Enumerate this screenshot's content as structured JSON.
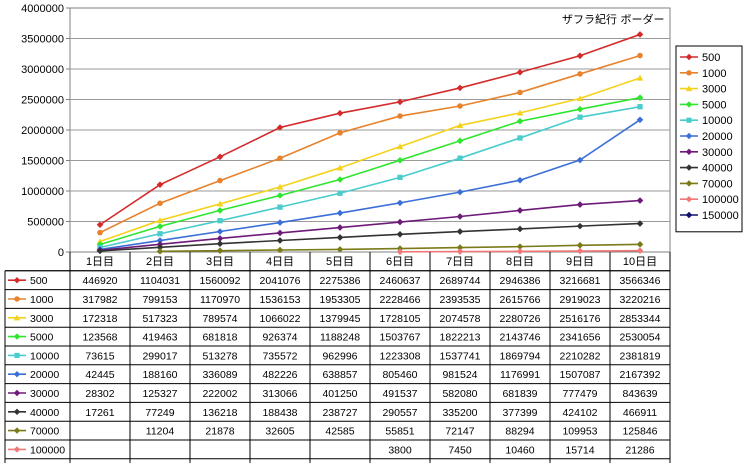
{
  "chart_data": {
    "type": "line",
    "title": "ザフラ紀行 ボーダー",
    "categories": [
      "1日目",
      "2日目",
      "3日目",
      "4日目",
      "5日目",
      "6日目",
      "7日目",
      "8日目",
      "9日目",
      "10日目"
    ],
    "ylim": [
      0,
      4000000
    ],
    "yticks": [
      "0",
      "500000",
      "1000000",
      "1500000",
      "2000000",
      "2500000",
      "3000000",
      "3500000",
      "4000000"
    ],
    "grid": true,
    "legend_position": "right",
    "series": [
      {
        "name": "500",
        "color": "#d42a2a",
        "marker": "diamond",
        "values": [
          446920,
          1104031,
          1560092,
          2041076,
          2275386,
          2460637,
          2689744,
          2946386,
          3216681,
          3566346
        ],
        "cells": [
          "446920",
          "1104031",
          "1560092",
          "2041076",
          "2275386",
          "2460637",
          "2689744",
          "2946386",
          "3216681",
          "3566346"
        ]
      },
      {
        "name": "1000",
        "color": "#e8822c",
        "marker": "circle",
        "values": [
          317982,
          799153,
          1170970,
          1536153,
          1953305,
          2228466,
          2393535,
          2615766,
          2919023,
          3220216
        ],
        "cells": [
          "317982",
          "799153",
          "1170970",
          "1536153",
          "1953305",
          "2228466",
          "2393535",
          "2615766",
          "2919023",
          "3220216"
        ]
      },
      {
        "name": "3000",
        "color": "#f5d21a",
        "marker": "triangle",
        "values": [
          172318,
          517323,
          789574,
          1066022,
          1379945,
          1728105,
          2074578,
          2280726,
          2516176,
          2853344
        ],
        "cells": [
          "172318",
          "517323",
          "789574",
          "1066022",
          "1379945",
          "1728105",
          "2074578",
          "2280726",
          "2516176",
          "2853344"
        ]
      },
      {
        "name": "5000",
        "color": "#2ee62e",
        "marker": "diamond",
        "values": [
          123568,
          419463,
          681818,
          926374,
          1188248,
          1503767,
          1822213,
          2143746,
          2341656,
          2530054
        ],
        "cells": [
          "123568",
          "419463",
          "681818",
          "926374",
          "1188248",
          "1503767",
          "1822213",
          "2143746",
          "2341656",
          "2530054"
        ]
      },
      {
        "name": "10000",
        "color": "#48cccc",
        "marker": "square",
        "values": [
          73615,
          299017,
          513278,
          735572,
          962996,
          1223308,
          1537741,
          1869794,
          2210282,
          2381819
        ],
        "cells": [
          "73615",
          "299017",
          "513278",
          "735572",
          "962996",
          "1223308",
          "1537741",
          "1869794",
          "2210282",
          "2381819"
        ]
      },
      {
        "name": "20000",
        "color": "#3a6fd8",
        "marker": "diamond",
        "values": [
          42445,
          188160,
          336089,
          482226,
          638857,
          805460,
          981524,
          1176991,
          1507087,
          2167392
        ],
        "cells": [
          "42445",
          "188160",
          "336089",
          "482226",
          "638857",
          "805460",
          "981524",
          "1176991",
          "1507087",
          "2167392"
        ]
      },
      {
        "name": "30000",
        "color": "#6e1a78",
        "marker": "diamond",
        "values": [
          28302,
          125327,
          222002,
          313066,
          401250,
          491537,
          582080,
          681839,
          777479,
          843639
        ],
        "cells": [
          "28302",
          "125327",
          "222002",
          "313066",
          "401250",
          "491537",
          "582080",
          "681839",
          "777479",
          "843639"
        ]
      },
      {
        "name": "40000",
        "color": "#333333",
        "marker": "diamond",
        "values": [
          17261,
          77249,
          136218,
          188438,
          238727,
          290557,
          335200,
          377399,
          424102,
          466911
        ],
        "cells": [
          "17261",
          "77249",
          "136218",
          "188438",
          "238727",
          "290557",
          "335200",
          "377399",
          "424102",
          "466911"
        ]
      },
      {
        "name": "70000",
        "color": "#7a7a18",
        "marker": "diamond",
        "values": [
          null,
          11204,
          21878,
          32605,
          42585,
          55851,
          72147,
          88294,
          109953,
          125846
        ],
        "cells": [
          "",
          "11204",
          "21878",
          "32605",
          "42585",
          "55851",
          "72147",
          "88294",
          "109953",
          "125846"
        ]
      },
      {
        "name": "100000",
        "color": "#f07878",
        "marker": "diamond",
        "values": [
          null,
          null,
          null,
          null,
          null,
          3800,
          7450,
          10460,
          15714,
          21286
        ],
        "cells": [
          "",
          "",
          "",
          "",
          "",
          "3800",
          "7450",
          "10460",
          "15714",
          "21286"
        ]
      },
      {
        "name": "150000",
        "color": "#101070",
        "marker": "diamond",
        "values": [
          null,
          null,
          null,
          null,
          null,
          null,
          null,
          null,
          null,
          null
        ],
        "cells": [
          "",
          "",
          "",
          "",
          "",
          "",
          "",
          "",
          "",
          ""
        ]
      }
    ]
  }
}
